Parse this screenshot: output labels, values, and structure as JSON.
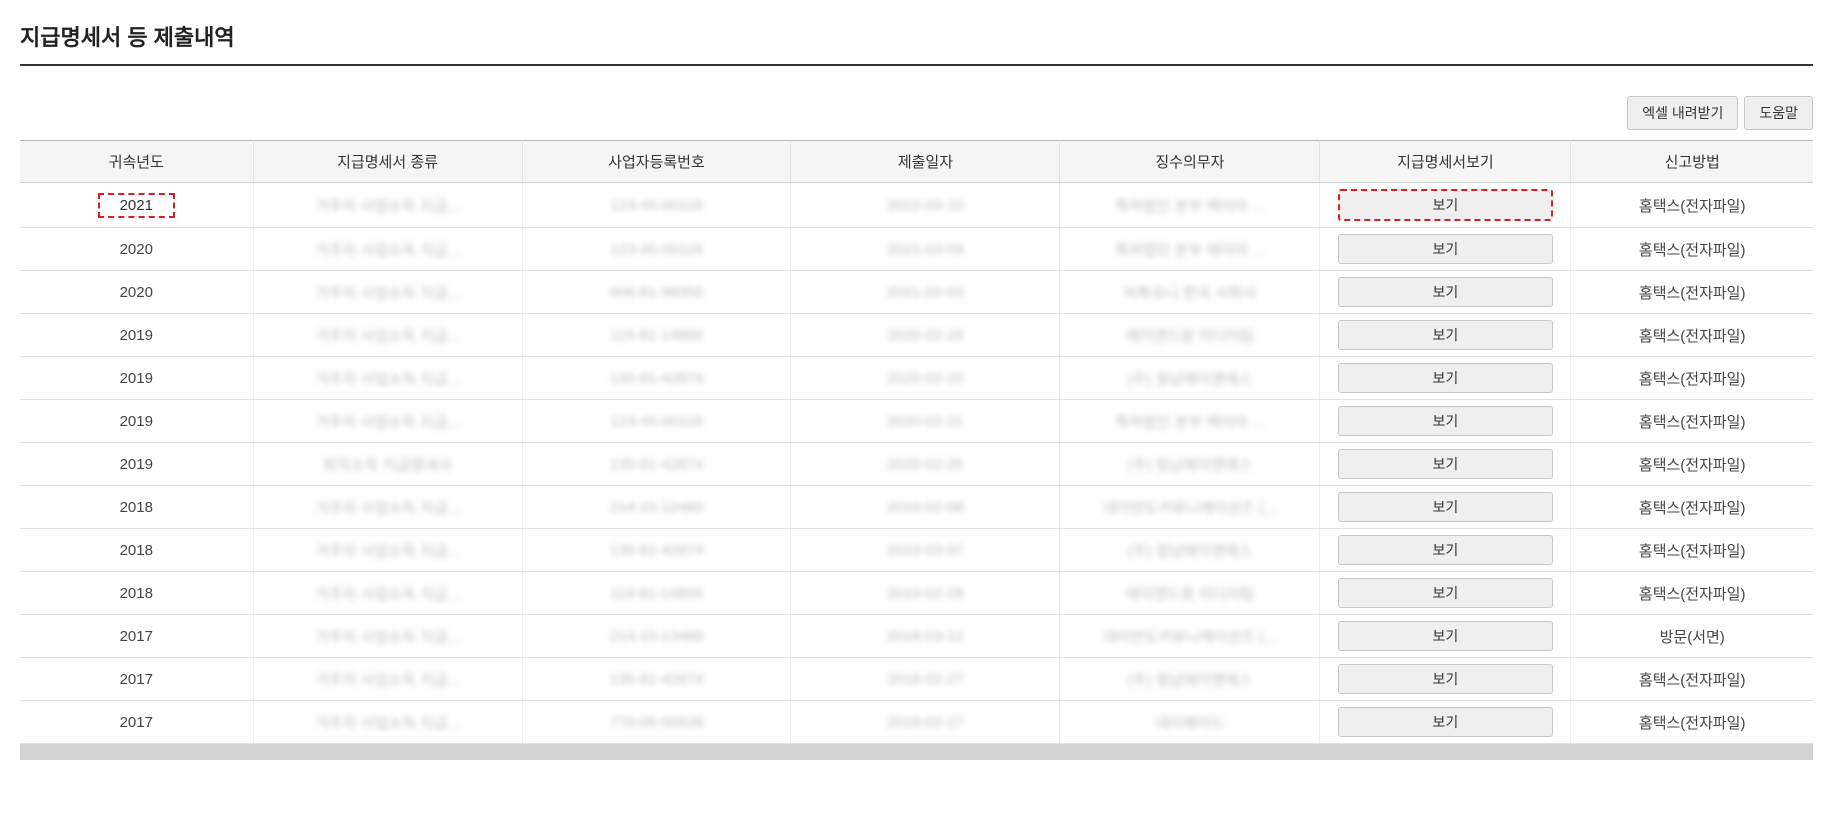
{
  "title": "지급명세서 등 제출내역",
  "toolbar": {
    "excel_label": "엑셀 내려받기",
    "help_label": "도움말"
  },
  "table": {
    "columns": {
      "year": "귀속년도",
      "type": "지급명세서 종류",
      "regno": "사업자등록번호",
      "date": "제출일자",
      "agent": "징수의무자",
      "view": "지급명세서보기",
      "method": "신고방법"
    },
    "view_button_label": "보기",
    "rows": [
      {
        "year": "2021",
        "type": "거주자 사업소득 지급...",
        "regno": "123-45-00118",
        "date": "2022-03-10",
        "agent": "특허법인 본부 에이아 ...",
        "method": "홈택스(전자파일)",
        "highlight": true
      },
      {
        "year": "2020",
        "type": "거주자 사업소득 지급...",
        "regno": "123-45-00118",
        "date": "2021-03-09",
        "agent": "특허법인 본부 에이아 ...",
        "method": "홈택스(전자파일)",
        "highlight": false
      },
      {
        "year": "2020",
        "type": "거주자 사업소득 지급...",
        "regno": "606-81-98356",
        "date": "2021-02-03",
        "agent": "비톡유니 한국 사회사",
        "method": "홈택스(전자파일)",
        "highlight": false
      },
      {
        "year": "2019",
        "type": "거주자 사업소득 지급...",
        "regno": "119-81-14866",
        "date": "2020-02-29",
        "agent": "에이앤드원 미디어팀",
        "method": "홈택스(전자파일)",
        "highlight": false
      },
      {
        "year": "2019",
        "type": "거주자 사업소득 지급...",
        "regno": "135-81-42874",
        "date": "2020-02-25",
        "agent": "(주) 청남에이앤에스",
        "method": "홈택스(전자파일)",
        "highlight": false
      },
      {
        "year": "2019",
        "type": "거주자 사업소득 지급...",
        "regno": "123-45-00118",
        "date": "2020-02-21",
        "agent": "특허법인 본부 에이아 ...",
        "method": "홈택스(전자파일)",
        "highlight": false
      },
      {
        "year": "2019",
        "type": "퇴직소득 지급명세서",
        "regno": "135-81-42874",
        "date": "2020-02-25",
        "agent": "(주) 청남에이앤에스",
        "method": "홈택스(전자파일)",
        "highlight": false
      },
      {
        "year": "2018",
        "type": "거주자 사업소득 지급...",
        "regno": "214-15-12489",
        "date": "2019-02-08",
        "agent": "데이먼도커뮤니케이션즈 (...",
        "method": "홈택스(전자파일)",
        "highlight": false
      },
      {
        "year": "2018",
        "type": "거주자 사업소득 지급...",
        "regno": "135-81-42874",
        "date": "2019-03-07",
        "agent": "(주) 청남에이앤에스",
        "method": "홈택스(전자파일)",
        "highlight": false
      },
      {
        "year": "2018",
        "type": "거주자 사업소득 지급...",
        "regno": "119-81-14809",
        "date": "2019-02-28",
        "agent": "에이앤드원 미디어팀",
        "method": "홈택스(전자파일)",
        "highlight": false
      },
      {
        "year": "2017",
        "type": "거주자 사업소득 지급...",
        "regno": "214-15-13489",
        "date": "2018-03-12",
        "agent": "데이먼도커뮤니케이션즈 (...",
        "method": "방문(서면)",
        "highlight": false
      },
      {
        "year": "2017",
        "type": "거주자 사업소득 지급...",
        "regno": "135-81-42874",
        "date": "2018-02-27",
        "agent": "(주) 청남에이앤에스",
        "method": "홈택스(전자파일)",
        "highlight": false
      },
      {
        "year": "2017",
        "type": "거주자 사업소득 지급...",
        "regno": "770-06-00928",
        "date": "2018-02-27",
        "agent": "네이메이드",
        "method": "홈택스(전자파일)",
        "highlight": false
      }
    ]
  },
  "colors": {
    "highlight_border": "#d62020",
    "header_bg": "#f5f5f5",
    "btn_bg": "#efefef",
    "border": "#c8c8c8",
    "text": "#333333",
    "blurred_text": "#bfbfbf"
  }
}
